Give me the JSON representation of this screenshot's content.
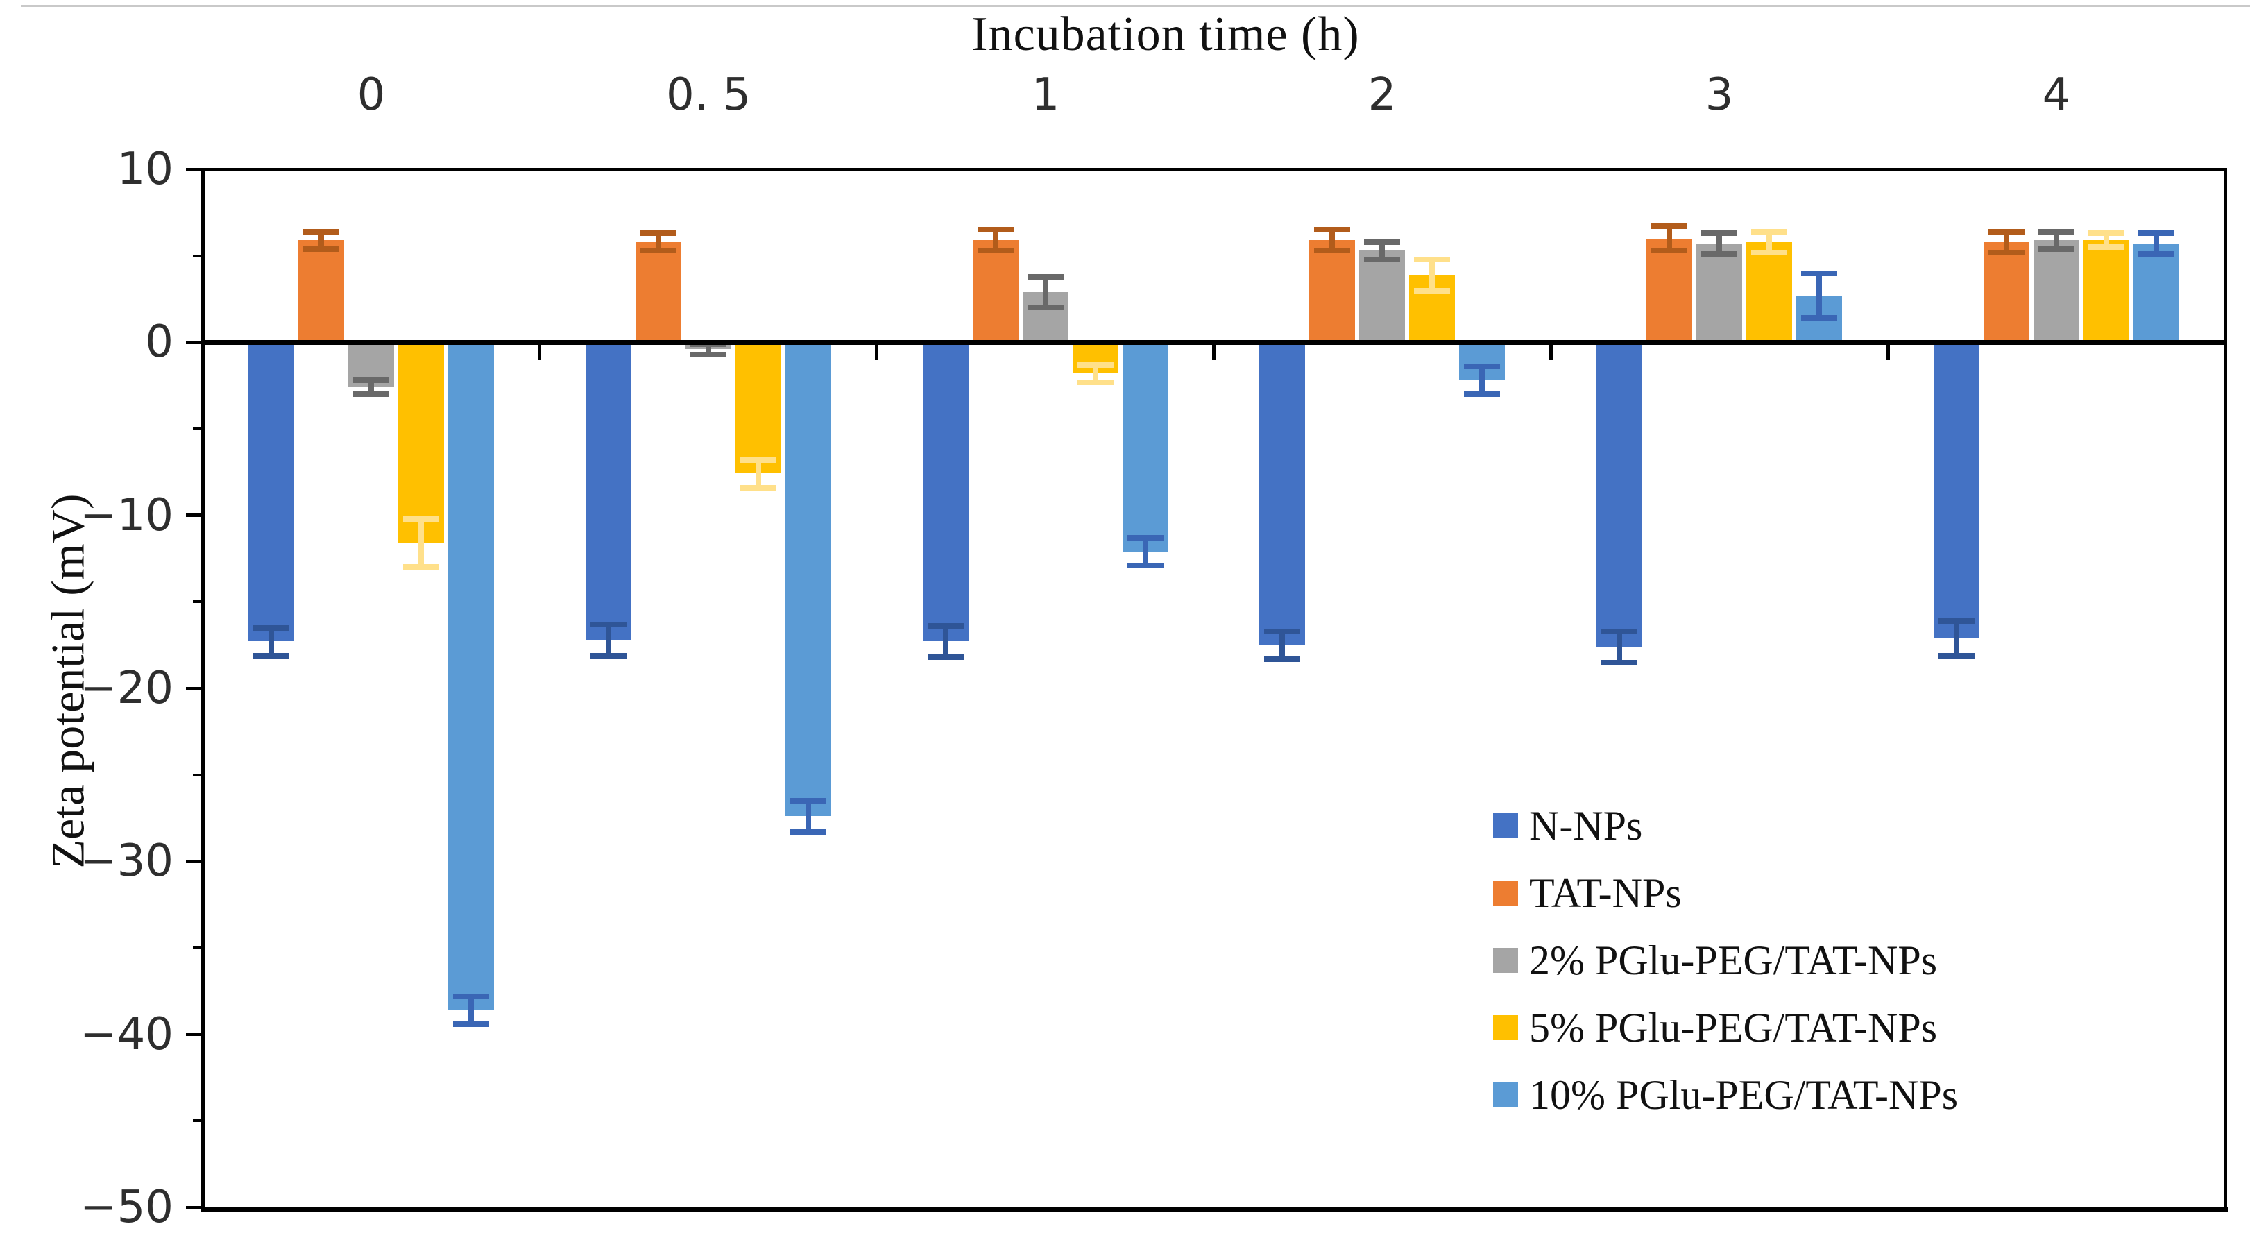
{
  "title": "Incubation time (h)",
  "y_axis": {
    "label": "Zeta potential (mV)",
    "tick_labels": [
      "10",
      "0",
      "−10",
      "−20",
      "−30",
      "−40",
      "−50"
    ],
    "major_ticks": [
      10,
      0,
      -10,
      -20,
      -30,
      -40,
      -50
    ],
    "minor_ticks": [
      5,
      -5,
      -15,
      -25,
      -35,
      -45
    ]
  },
  "x_axis": {
    "tick_labels": [
      "0",
      "0. 5",
      "1",
      "2",
      "3",
      "4"
    ]
  },
  "legend": {
    "entries": [
      "N-NPs",
      "TAT-NPs",
      "2% PGlu-PEG/TAT-NPs",
      "5% PGlu-PEG/TAT-NPs",
      "10% PGlu-PEG/TAT-NPs"
    ]
  },
  "chart_data": {
    "type": "bar",
    "title": "Incubation time (h)",
    "xlabel": "Incubation time (h)",
    "ylabel": "Zeta potential (mV)",
    "ylim": [
      -50,
      10
    ],
    "y_major_step": 10,
    "y_minor_step": 5,
    "grid": false,
    "legend_position": "lower right",
    "error_bars": true,
    "categories": [
      0,
      0.5,
      1,
      2,
      3,
      4
    ],
    "series": [
      {
        "name": "N-NPs",
        "color": "#4472C4",
        "error_color": "#2F5597",
        "values": [
          -17.3,
          -17.2,
          -17.3,
          -17.5,
          -17.6,
          -17.1
        ],
        "errors": [
          0.8,
          0.9,
          0.9,
          0.8,
          0.9,
          1.0
        ]
      },
      {
        "name": "TAT-NPs",
        "color": "#ED7D31",
        "error_color": "#B25C1B",
        "values": [
          5.9,
          5.8,
          5.9,
          5.9,
          6.0,
          5.8
        ],
        "errors": [
          0.5,
          0.5,
          0.6,
          0.6,
          0.7,
          0.6
        ]
      },
      {
        "name": "2% PGlu-PEG/TAT-NPs",
        "color": "#A5A5A5",
        "error_color": "#696969",
        "values": [
          -2.6,
          -0.4,
          2.9,
          5.3,
          5.7,
          5.9
        ],
        "errors": [
          0.4,
          0.3,
          0.9,
          0.5,
          0.6,
          0.5
        ]
      },
      {
        "name": "5% PGlu-PEG/TAT-NPs",
        "color": "#FFC000",
        "error_color": "#FFE08A",
        "values": [
          -11.6,
          -7.6,
          -1.8,
          3.9,
          5.8,
          5.9
        ],
        "errors": [
          1.4,
          0.8,
          0.5,
          0.9,
          0.6,
          0.4
        ]
      },
      {
        "name": "10% PGlu-PEG/TAT-NPs",
        "color": "#5B9BD5",
        "error_color": "#3A66B5",
        "values": [
          -38.6,
          -27.4,
          -12.1,
          -2.2,
          2.7,
          5.7
        ],
        "errors": [
          0.8,
          0.9,
          0.8,
          0.8,
          1.3,
          0.6
        ]
      }
    ]
  }
}
